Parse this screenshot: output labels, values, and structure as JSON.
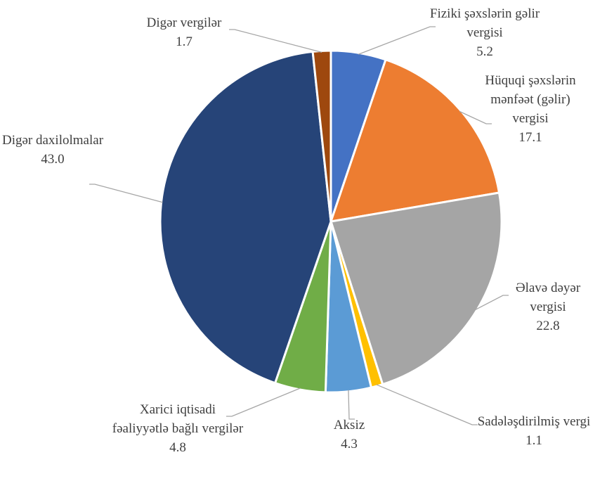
{
  "chart_data": {
    "type": "pie",
    "categories": [
      "Fiziki şəxslərin gəlir vergisi",
      "Hüquqi şəxslərin mənfəət (gəlir) vergisi",
      "Əlavə dəyər vergisi",
      "Sadələşdirilmiş vergi",
      "Aksiz",
      "Xarici iqtisadi fəaliyyətlə bağlı vergilər",
      "Digər daxilolmalar",
      "Digər vergilər"
    ],
    "values": [
      5.2,
      17.1,
      22.8,
      1.1,
      4.3,
      4.8,
      43.0,
      1.7
    ],
    "value_labels": [
      "5.2",
      "17.1",
      "22.8",
      "1.1",
      "4.3",
      "4.8",
      "43.0",
      "1.7"
    ],
    "colors": [
      "#4472c4",
      "#ed7d31",
      "#a5a5a5",
      "#ffc000",
      "#5b9bd5",
      "#70ad47",
      "#264478",
      "#9e480e"
    ]
  }
}
